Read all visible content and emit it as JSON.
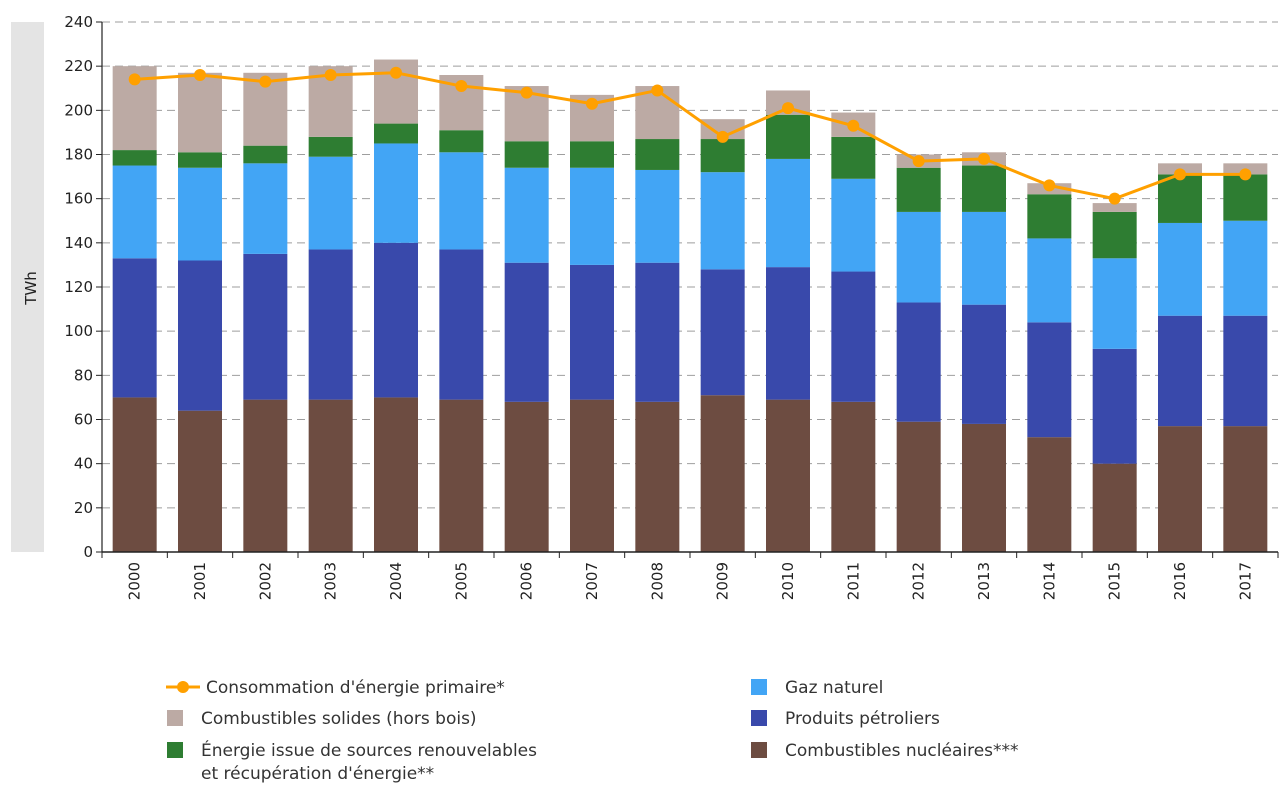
{
  "chart_data": {
    "type": "bar",
    "stacked": true,
    "title": "",
    "xlabel": "",
    "ylabel": "TWh",
    "ylim": [
      0,
      240
    ],
    "y_ticks": [
      "0",
      "20",
      "40",
      "60",
      "80",
      "100",
      "120",
      "140",
      "160",
      "180",
      "200",
      "220",
      "240"
    ],
    "grid": "horizontal dashed",
    "legend_position": "bottom",
    "categories": [
      "2000",
      "2001",
      "2002",
      "2003",
      "2004",
      "2005",
      "2006",
      "2007",
      "2008",
      "2009",
      "2010",
      "2011",
      "2012",
      "2013",
      "2014",
      "2015",
      "2016",
      "2017"
    ],
    "series": [
      {
        "key": "nuclear",
        "name": "Combustibles nucléaires***",
        "color": "#6d4c41",
        "values": [
          70,
          64,
          69,
          69,
          70,
          69,
          68,
          69,
          68,
          71,
          69,
          68,
          59,
          58,
          52,
          40,
          57,
          57
        ]
      },
      {
        "key": "petroleum",
        "name": "Produits pétroliers",
        "color": "#3949ab",
        "values": [
          63,
          68,
          66,
          68,
          70,
          68,
          63,
          61,
          63,
          57,
          60,
          59,
          54,
          54,
          52,
          52,
          50,
          50
        ]
      },
      {
        "key": "gas",
        "name": "Gaz naturel",
        "color": "#42a5f5",
        "values": [
          42,
          42,
          41,
          42,
          45,
          44,
          43,
          44,
          42,
          44,
          49,
          42,
          41,
          42,
          38,
          41,
          42,
          43
        ]
      },
      {
        "key": "renewable",
        "name": "Énergie issue de sources renouvelables et récupération d'énergie**",
        "legend_lines": [
          "Énergie issue de sources renouvelables",
          "et récupération d'énergie**"
        ],
        "color": "#2e7d32",
        "values": [
          7,
          7,
          8,
          9,
          9,
          10,
          12,
          12,
          14,
          15,
          20,
          19,
          20,
          21,
          20,
          21,
          22,
          21
        ]
      },
      {
        "key": "solid",
        "name": "Combustibles solides (hors bois)",
        "color": "#bcaaa4",
        "values": [
          38,
          36,
          33,
          32,
          29,
          25,
          25,
          21,
          24,
          9,
          11,
          11,
          6,
          6,
          5,
          4,
          5,
          5
        ]
      }
    ],
    "line_series": {
      "name": "Consommation d'énergie primaire*",
      "color": "#ffa000",
      "values": [
        214,
        216,
        213,
        216,
        217,
        211,
        208,
        203,
        209,
        188,
        201,
        193,
        177,
        178,
        166,
        160,
        171,
        171
      ]
    }
  }
}
